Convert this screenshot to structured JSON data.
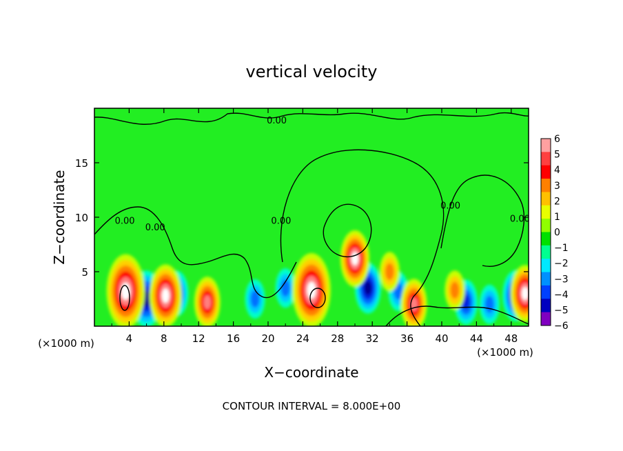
{
  "chart_data": {
    "type": "heatmap",
    "title": "vertical velocity",
    "xlabel": "X−coordinate",
    "ylabel": "Z−coordinate",
    "x_unit_label": "(×1000 m)",
    "footer": "CONTOUR INTERVAL = 8.000E+00",
    "xlim": [
      0,
      50
    ],
    "ylim": [
      0,
      20
    ],
    "x_ticks": [
      4,
      8,
      12,
      16,
      20,
      24,
      28,
      32,
      36,
      40,
      44,
      48
    ],
    "y_ticks": [
      5,
      10,
      15
    ],
    "contour_labels": [
      {
        "text": "0.00",
        "x": 21,
        "z": 18.6
      },
      {
        "text": "0.00",
        "x": 3.5,
        "z": 9.4
      },
      {
        "text": "0.00",
        "x": 7,
        "z": 8.8
      },
      {
        "text": "0.00",
        "x": 21.5,
        "z": 9.4
      },
      {
        "text": "0.00",
        "x": 41,
        "z": 10.8
      },
      {
        "text": "0.00",
        "x": 49,
        "z": 9.6
      }
    ],
    "colorbar": {
      "ticks": [
        "6",
        "5",
        "4",
        "3",
        "2",
        "1",
        "0",
        "−1",
        "−2",
        "−3",
        "−4",
        "−5",
        "−6"
      ],
      "colors": [
        "#ffa0a0",
        "#ff4040",
        "#ff0000",
        "#ff8000",
        "#ffc000",
        "#e8ff00",
        "#90ff00",
        "#00e000",
        "#00ff90",
        "#00e8ff",
        "#0090ff",
        "#0040ff",
        "#0000c0",
        "#8000c0"
      ]
    },
    "updrafts": [
      {
        "x": 3.6,
        "z": 3.2,
        "peak": 9
      },
      {
        "x": 8.2,
        "z": 2.8,
        "peak": 7
      },
      {
        "x": 13.0,
        "z": 2.2,
        "peak": 5
      },
      {
        "x": 25.0,
        "z": 3.3,
        "peak": 9
      },
      {
        "x": 30.0,
        "z": 6.2,
        "peak": 6
      },
      {
        "x": 34.0,
        "z": 5.0,
        "peak": 3
      },
      {
        "x": 36.8,
        "z": 2.0,
        "peak": 5
      },
      {
        "x": 41.5,
        "z": 3.3,
        "peak": 3
      },
      {
        "x": 49.6,
        "z": 3.0,
        "peak": 6
      }
    ],
    "downdrafts": [
      {
        "x": 6.0,
        "z": 2.5,
        "peak": -6
      },
      {
        "x": 9.5,
        "z": 3.0,
        "peak": -4
      },
      {
        "x": 18.5,
        "z": 2.5,
        "peak": -3
      },
      {
        "x": 22.0,
        "z": 3.5,
        "peak": -3
      },
      {
        "x": 31.5,
        "z": 3.5,
        "peak": -5
      },
      {
        "x": 35.0,
        "z": 3.2,
        "peak": -3
      },
      {
        "x": 42.8,
        "z": 2.2,
        "peak": -4
      },
      {
        "x": 45.5,
        "z": 2.0,
        "peak": -3
      },
      {
        "x": 48.5,
        "z": 2.8,
        "peak": -5
      }
    ]
  }
}
